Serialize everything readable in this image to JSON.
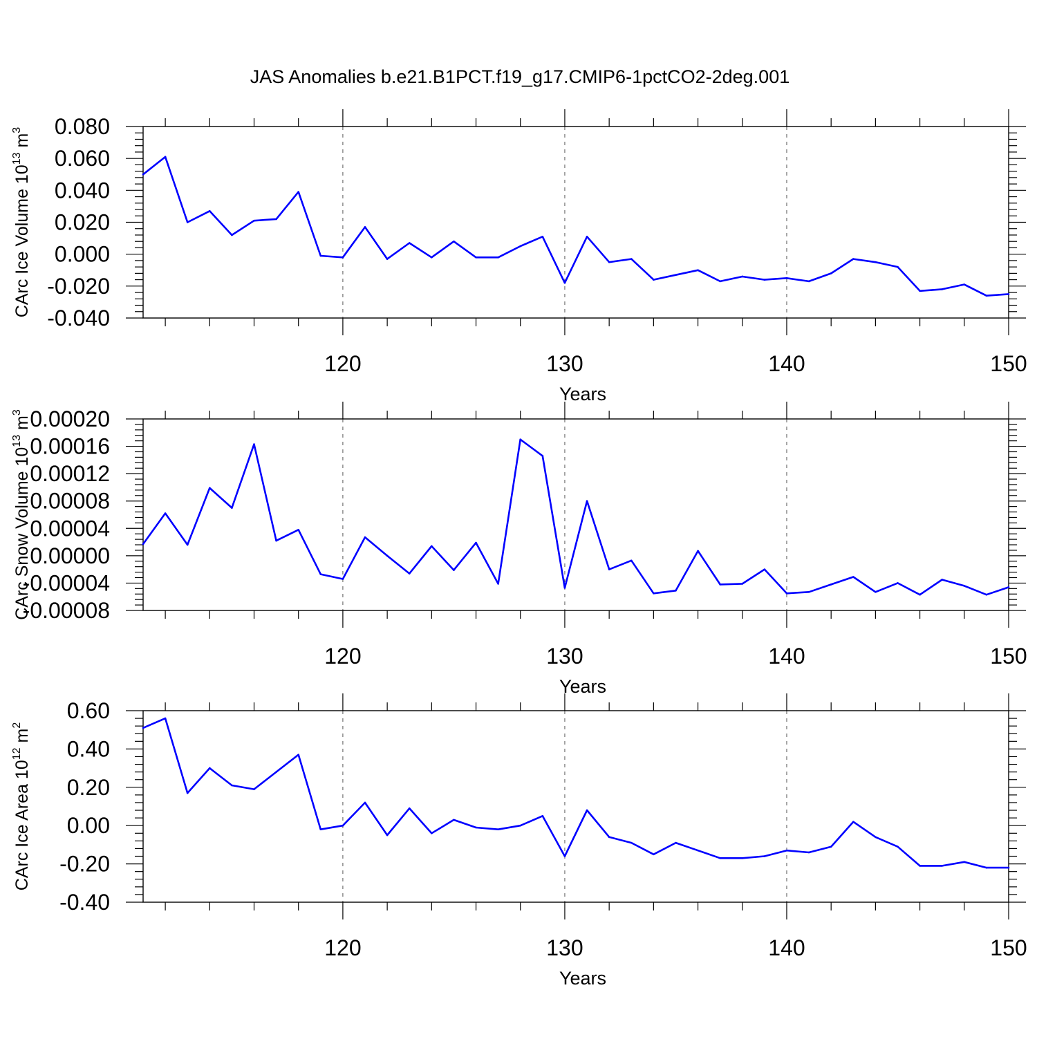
{
  "figure_title": "JAS Anomalies b.e21.B1PCT.f19_g17.CMIP6-1pctCO2-2deg.001",
  "line_color": "#0000ff",
  "chart_data": [
    {
      "type": "line",
      "xlabel": "Years",
      "ylabel": {
        "base": "CArc Ice Volume 10",
        "sup": "13",
        "unit": " m",
        "unit_sup": "3"
      },
      "xlim": [
        111,
        150
      ],
      "ylim": [
        -0.04,
        0.08
      ],
      "xticks": [
        120,
        130,
        140,
        150
      ],
      "xtick_labels": [
        "120",
        "130",
        "140",
        "150"
      ],
      "yticks": [
        -0.04,
        -0.02,
        0.0,
        0.02,
        0.04,
        0.06,
        0.08
      ],
      "ytick_labels": [
        "-0.040",
        "-0.020",
        "0.000",
        "0.020",
        "0.040",
        "0.060",
        "0.080"
      ],
      "grid_x": true,
      "x": [
        111,
        112,
        113,
        114,
        115,
        116,
        117,
        118,
        119,
        120,
        121,
        122,
        123,
        124,
        125,
        126,
        127,
        128,
        129,
        130,
        131,
        132,
        133,
        134,
        135,
        136,
        137,
        138,
        139,
        140,
        141,
        142,
        143,
        144,
        145,
        146,
        147,
        148,
        149,
        150
      ],
      "values": [
        0.05,
        0.061,
        0.02,
        0.027,
        0.012,
        0.021,
        0.022,
        0.039,
        -0.001,
        -0.002,
        0.017,
        -0.003,
        0.007,
        -0.002,
        0.008,
        -0.002,
        -0.002,
        0.005,
        0.011,
        -0.018,
        0.011,
        -0.005,
        -0.003,
        -0.016,
        -0.013,
        -0.01,
        -0.017,
        -0.014,
        -0.016,
        -0.015,
        -0.017,
        -0.012,
        -0.003,
        -0.005,
        -0.008,
        -0.023,
        -0.022,
        -0.019,
        -0.026,
        -0.025
      ]
    },
    {
      "type": "line",
      "xlabel": "Years",
      "ylabel": {
        "base": "CArc Snow Volume 10",
        "sup": "13",
        "unit": " m",
        "unit_sup": "3"
      },
      "xlim": [
        111,
        150
      ],
      "ylim": [
        -8e-05,
        0.0002
      ],
      "xticks": [
        120,
        130,
        140,
        150
      ],
      "xtick_labels": [
        "120",
        "130",
        "140",
        "150"
      ],
      "yticks": [
        -8e-05,
        -4e-05,
        0.0,
        4e-05,
        8e-05,
        0.00012,
        0.00016,
        0.0002
      ],
      "ytick_labels": [
        "-0.00008",
        "-0.00004",
        "0.00000",
        "0.00004",
        "0.00008",
        "0.00012",
        "0.00016",
        "0.00020"
      ],
      "grid_x": true,
      "x": [
        111,
        112,
        113,
        114,
        115,
        116,
        117,
        118,
        119,
        120,
        121,
        122,
        123,
        124,
        125,
        126,
        127,
        128,
        129,
        130,
        131,
        132,
        133,
        134,
        135,
        136,
        137,
        138,
        139,
        140,
        141,
        142,
        143,
        144,
        145,
        146,
        147,
        148,
        149,
        150
      ],
      "values": [
        1.7e-05,
        6.2e-05,
        1.6e-05,
        9.9e-05,
        7e-05,
        0.000163,
        2.2e-05,
        3.8e-05,
        -2.7e-05,
        -3.4e-05,
        2.7e-05,
        0.0,
        -2.6e-05,
        1.4e-05,
        -2.1e-05,
        1.9e-05,
        -4.1e-05,
        0.00017,
        0.000146,
        -4.7e-05,
        8e-05,
        -2e-05,
        -7e-06,
        -5.5e-05,
        -5.1e-05,
        7e-06,
        -4.2e-05,
        -4.1e-05,
        -2e-05,
        -5.5e-05,
        -5.3e-05,
        -4.2e-05,
        -3.1e-05,
        -5.3e-05,
        -4e-05,
        -5.7e-05,
        -3.5e-05,
        -4.4e-05,
        -5.7e-05,
        -4.6e-05
      ]
    },
    {
      "type": "line",
      "xlabel": "Years",
      "ylabel": {
        "base": "CArc Ice Area 10",
        "sup": "12",
        "unit": " m",
        "unit_sup": "2"
      },
      "xlim": [
        111,
        150
      ],
      "ylim": [
        -0.4,
        0.6
      ],
      "xticks": [
        120,
        130,
        140,
        150
      ],
      "xtick_labels": [
        "120",
        "130",
        "140",
        "150"
      ],
      "yticks": [
        -0.4,
        -0.2,
        0.0,
        0.2,
        0.4,
        0.6
      ],
      "ytick_labels": [
        "-0.40",
        "-0.20",
        "0.00",
        "0.20",
        "0.40",
        "0.60"
      ],
      "grid_x": true,
      "x": [
        111,
        112,
        113,
        114,
        115,
        116,
        117,
        118,
        119,
        120,
        121,
        122,
        123,
        124,
        125,
        126,
        127,
        128,
        129,
        130,
        131,
        132,
        133,
        134,
        135,
        136,
        137,
        138,
        139,
        140,
        141,
        142,
        143,
        144,
        145,
        146,
        147,
        148,
        149,
        150
      ],
      "values": [
        0.51,
        0.56,
        0.17,
        0.3,
        0.21,
        0.19,
        0.28,
        0.37,
        -0.02,
        0.0,
        0.12,
        -0.05,
        0.09,
        -0.04,
        0.03,
        -0.01,
        -0.02,
        0.0,
        0.05,
        -0.16,
        0.08,
        -0.06,
        -0.09,
        -0.15,
        -0.09,
        -0.13,
        -0.17,
        -0.17,
        -0.16,
        -0.13,
        -0.14,
        -0.11,
        0.02,
        -0.06,
        -0.11,
        -0.21,
        -0.21,
        -0.19,
        -0.22,
        -0.22
      ]
    }
  ]
}
